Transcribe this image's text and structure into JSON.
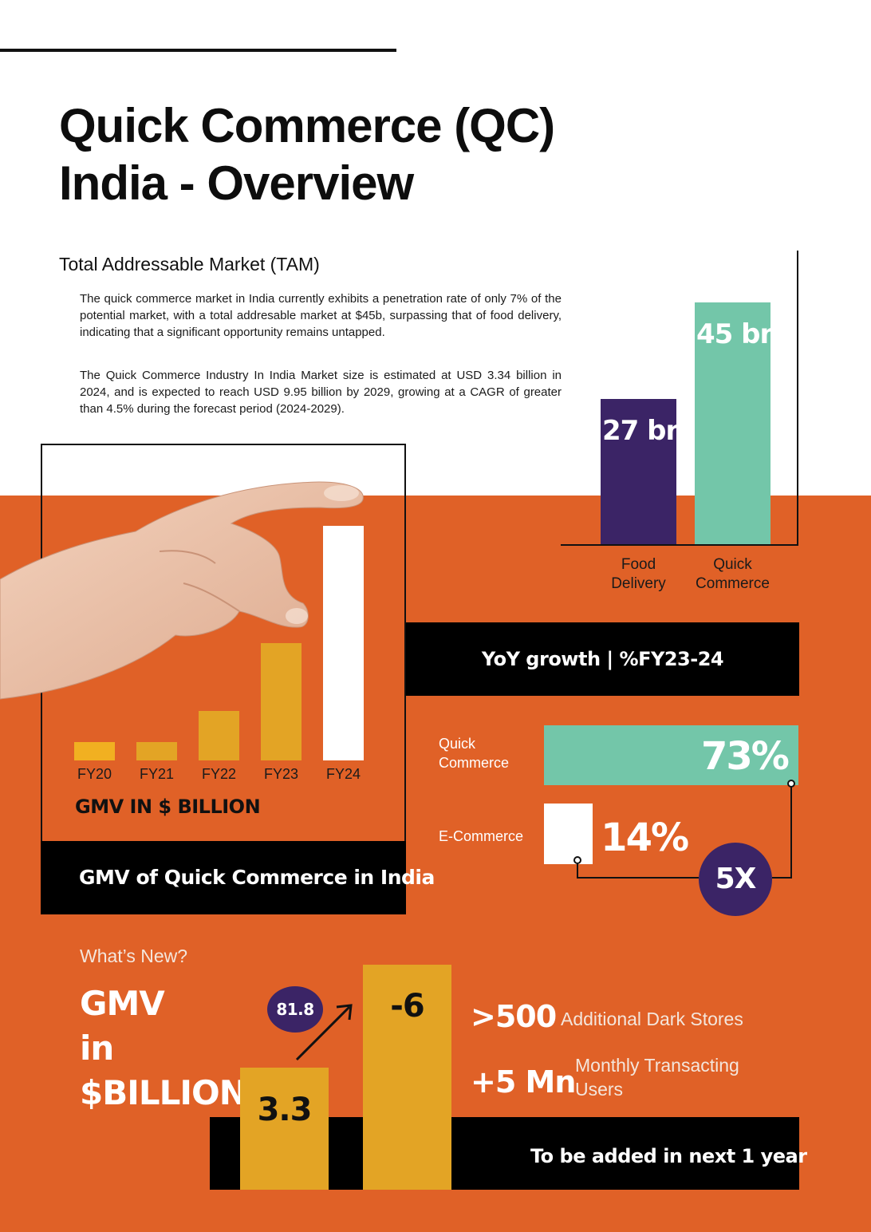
{
  "title": "Quick Commerce (QC) India - Overview",
  "tam": {
    "heading": "Total Addressable Market (TAM)",
    "paragraphs": [
      "The quick commerce market in India currently exhibits a penetration rate of only 7% of the potential market, with a total addresable market at $45b, surpassing that of food delivery, indicating that a significant opportunity remains untapped.",
      "The Quick Commerce Industry In India Market size is estimated at USD 3.34 billion in 2024, and is expected to reach USD 9.95 billion by 2029, growing at a CAGR of greater than 4.5% during the forecast period (2024-2029)."
    ]
  },
  "gmv_panel": {
    "footer_title": "GMV of Quick Commerce in India",
    "axis_title": "GMV IN $ BILLION"
  },
  "yoy": {
    "title": "YoY growth | %FY23-24",
    "multiplier": "5X"
  },
  "whats_new": {
    "label": "What’s New?",
    "gmv_heading_lines": [
      "GMV",
      "in",
      "$BILLION"
    ],
    "bar_values": [
      "3.3",
      "-6"
    ],
    "circle_value": "81.8",
    "stats": [
      {
        "value": ">500",
        "label": "Additional Dark Stores"
      },
      {
        "value": "+5 Mn",
        "label": "Monthly Transacting Users"
      }
    ],
    "banner": "To be added in next 1 year"
  },
  "colors": {
    "orange": "#e06127",
    "purple": "#3b2466",
    "teal": "#73c6a9",
    "gold": "#e3a425",
    "black": "#000000",
    "white": "#ffffff"
  },
  "chart_data": [
    {
      "type": "bar",
      "title": "",
      "categories": [
        "Food Delivery",
        "Quick Commerce"
      ],
      "values": [
        27,
        45
      ],
      "value_labels": [
        "USD 27 bn",
        "USD 45 bn"
      ],
      "unit": "USD bn",
      "colors": [
        "#3b2466",
        "#73c6a9"
      ],
      "ylim": [
        0,
        55
      ],
      "grid": false
    },
    {
      "type": "bar",
      "title": "GMV of Quick Commerce in India",
      "categories": [
        "FY20",
        "FY21",
        "FY22",
        "FY23",
        "FY24"
      ],
      "values": [
        0.3,
        0.3,
        0.8,
        1.9,
        3.8
      ],
      "ylabel": "GMV IN $ BILLION",
      "colors": [
        "#f1b021",
        "#e3a425",
        "#e3a425",
        "#e3a425",
        "#ffffff"
      ],
      "ylim": [
        0,
        4.5
      ],
      "grid": false
    },
    {
      "type": "bar",
      "orientation": "horizontal",
      "title": "YoY growth | %FY23-24",
      "categories": [
        "Quick Commerce",
        "E-Commerce"
      ],
      "values": [
        73,
        14
      ],
      "value_labels": [
        "73%",
        "14%"
      ],
      "colors": [
        "#73c6a9",
        "#ffffff"
      ],
      "xlim": [
        0,
        73
      ],
      "annotation": "5X"
    }
  ]
}
